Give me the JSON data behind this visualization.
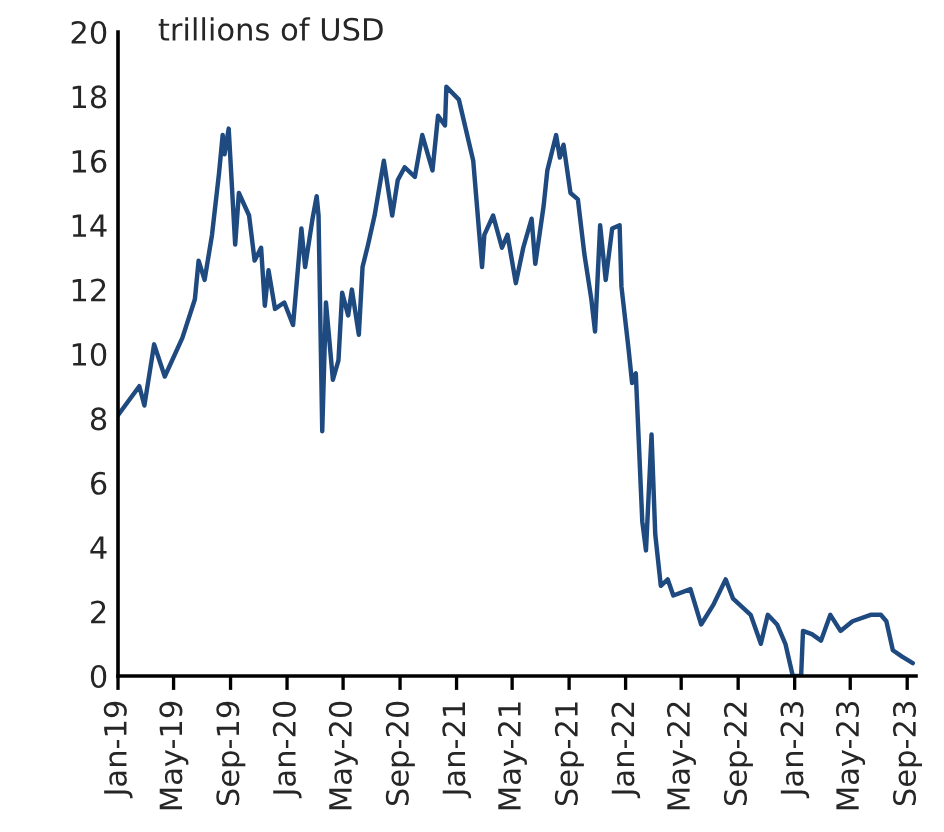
{
  "chart_data": {
    "type": "line",
    "annotations": [
      "trillions of USD"
    ],
    "xlim": [
      "2019-01-01",
      "2023-09-20"
    ],
    "xticks": [
      {
        "value": "2019-01-01",
        "label": "Jan-19"
      },
      {
        "value": "2019-05-01",
        "label": "May-19"
      },
      {
        "value": "2019-09-01",
        "label": "Sep-19"
      },
      {
        "value": "2020-01-01",
        "label": "Jan-20"
      },
      {
        "value": "2020-05-01",
        "label": "May-20"
      },
      {
        "value": "2020-09-01",
        "label": "Sep-20"
      },
      {
        "value": "2021-01-01",
        "label": "Jan-21"
      },
      {
        "value": "2021-05-01",
        "label": "May-21"
      },
      {
        "value": "2021-09-01",
        "label": "Sep-21"
      },
      {
        "value": "2022-01-01",
        "label": "Jan-22"
      },
      {
        "value": "2022-05-01",
        "label": "May-22"
      },
      {
        "value": "2022-09-01",
        "label": "Sep-22"
      },
      {
        "value": "2023-01-01",
        "label": "Jan-23"
      },
      {
        "value": "2023-05-01",
        "label": "May-23"
      },
      {
        "value": "2023-09-01",
        "label": "Sep-23"
      }
    ],
    "ylim": [
      0,
      20
    ],
    "yticks": [
      0,
      2,
      4,
      6,
      8,
      10,
      12,
      14,
      16,
      18,
      20
    ],
    "grid": false,
    "legend": false,
    "marker": "none",
    "line_style": "solid",
    "series": [
      {
        "color": "#1f4a80",
        "x": [
          "2019-01-01",
          "2019-02-16",
          "2019-02-27",
          "2019-03-20",
          "2019-04-12",
          "2019-05-20",
          "2019-06-16",
          "2019-06-24",
          "2019-07-07",
          "2019-07-23",
          "2019-08-07",
          "2019-08-15",
          "2019-08-19",
          "2019-08-28",
          "2019-09-11",
          "2019-09-19",
          "2019-10-11",
          "2019-10-23",
          "2019-11-06",
          "2019-11-14",
          "2019-11-22",
          "2019-12-06",
          "2019-12-26",
          "2020-01-14",
          "2020-02-01",
          "2020-02-09",
          "2020-02-25",
          "2020-03-05",
          "2020-03-09",
          "2020-03-17",
          "2020-03-25",
          "2020-04-09",
          "2020-04-21",
          "2020-04-29",
          "2020-05-12",
          "2020-05-20",
          "2020-06-04",
          "2020-06-12",
          "2020-06-24",
          "2020-07-08",
          "2020-07-28",
          "2020-08-15",
          "2020-08-27",
          "2020-09-11",
          "2020-10-03",
          "2020-10-19",
          "2020-11-10",
          "2020-11-22",
          "2020-12-07",
          "2020-12-10",
          "2021-01-06",
          "2021-02-06",
          "2021-02-25",
          "2021-03-02",
          "2021-03-21",
          "2021-04-09",
          "2021-04-21",
          "2021-05-09",
          "2021-05-25",
          "2021-06-12",
          "2021-06-20",
          "2021-07-08",
          "2021-07-16",
          "2021-08-04",
          "2021-08-12",
          "2021-08-20",
          "2021-09-04",
          "2021-09-20",
          "2021-10-04",
          "2021-10-19",
          "2021-10-27",
          "2021-11-07",
          "2021-11-19",
          "2021-12-03",
          "2021-12-19",
          "2021-12-23",
          "2022-01-07",
          "2022-01-15",
          "2022-01-23",
          "2022-02-06",
          "2022-02-14",
          "2022-02-26",
          "2022-03-06",
          "2022-03-18",
          "2022-04-02",
          "2022-04-14",
          "2022-05-21",
          "2022-06-13",
          "2022-07-09",
          "2022-08-05",
          "2022-08-21",
          "2022-09-28",
          "2022-10-20",
          "2022-11-04",
          "2022-11-24",
          "2022-12-12",
          "2022-12-28",
          "2023-01-15",
          "2023-01-19",
          "2023-02-07",
          "2023-02-27",
          "2023-03-19",
          "2023-04-10",
          "2023-05-06",
          "2023-06-14",
          "2023-07-06",
          "2023-07-18",
          "2023-08-01",
          "2023-08-21",
          "2023-09-13"
        ],
        "values": [
          8.1,
          9.0,
          8.4,
          10.3,
          9.3,
          10.5,
          11.7,
          12.9,
          12.3,
          13.7,
          15.6,
          16.8,
          16.2,
          17.0,
          13.4,
          15.0,
          14.3,
          12.9,
          13.3,
          11.5,
          12.6,
          11.4,
          11.6,
          10.9,
          13.9,
          12.7,
          14.2,
          14.9,
          14.3,
          7.6,
          11.6,
          9.2,
          9.8,
          11.9,
          11.2,
          12.0,
          10.6,
          12.7,
          13.4,
          14.3,
          16.0,
          14.3,
          15.4,
          15.8,
          15.5,
          16.8,
          15.7,
          17.4,
          17.1,
          18.3,
          17.9,
          16.0,
          12.7,
          13.7,
          14.3,
          13.3,
          13.7,
          12.2,
          13.3,
          14.2,
          12.8,
          14.6,
          15.7,
          16.8,
          16.1,
          16.5,
          15.0,
          14.8,
          13.1,
          11.7,
          10.7,
          14.0,
          12.3,
          13.9,
          14.0,
          12.1,
          10.2,
          9.1,
          9.4,
          4.8,
          3.9,
          7.5,
          4.4,
          2.8,
          3.0,
          2.5,
          2.7,
          1.6,
          2.2,
          3.0,
          2.4,
          1.9,
          1.0,
          1.9,
          1.6,
          1.0,
          0.0,
          0.0,
          1.4,
          1.3,
          1.1,
          1.9,
          1.4,
          1.7,
          1.9,
          1.9,
          1.7,
          0.8,
          0.6,
          0.4
        ]
      }
    ]
  }
}
